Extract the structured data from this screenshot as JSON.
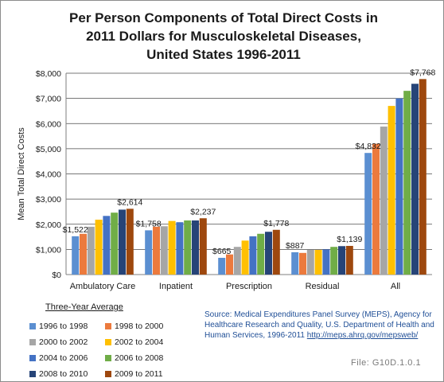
{
  "chart_data": {
    "type": "bar",
    "title_lines": [
      "Per Person Components of Total Direct Costs in",
      "2011 Dollars for Musculoskeletal Diseases,",
      "United States 1996-2011"
    ],
    "ylabel": "Mean Total Direct Costs",
    "ylim": [
      0,
      8000
    ],
    "yticks": [
      0,
      1000,
      2000,
      3000,
      4000,
      5000,
      6000,
      7000,
      8000
    ],
    "ytick_labels": [
      "$0",
      "$1,000",
      "$2,000",
      "$3,000",
      "$4,000",
      "$5,000",
      "$6,000",
      "$7,000",
      "$8,000"
    ],
    "grid": true,
    "categories": [
      "Ambulatory Care",
      "Inpatient",
      "Prescription",
      "Residual",
      "All"
    ],
    "series": [
      {
        "name": "1996 to 1998",
        "color": "#5b8fd1",
        "values": [
          1522,
          1758,
          665,
          887,
          4832
        ]
      },
      {
        "name": "1998 to 2000",
        "color": "#ec7a3d",
        "values": [
          1620,
          1900,
          800,
          860,
          5200
        ]
      },
      {
        "name": "2000 to 2002",
        "color": "#a6a6a6",
        "values": [
          1900,
          1920,
          1100,
          980,
          5880
        ]
      },
      {
        "name": "2002 to 2004",
        "color": "#ffc000",
        "values": [
          2180,
          2130,
          1350,
          980,
          6700
        ]
      },
      {
        "name": "2004 to 2006",
        "color": "#4472c4",
        "values": [
          2330,
          2080,
          1520,
          1000,
          7000
        ]
      },
      {
        "name": "2006 to 2008",
        "color": "#70ad47",
        "values": [
          2460,
          2150,
          1620,
          1100,
          7300
        ]
      },
      {
        "name": "2008 to 2010",
        "color": "#264478",
        "values": [
          2580,
          2150,
          1700,
          1130,
          7580
        ]
      },
      {
        "name": "2009 to 2011",
        "color": "#9e480e",
        "values": [
          2614,
          2237,
          1778,
          1139,
          7768
        ]
      }
    ],
    "data_labels": [
      {
        "category": 0,
        "series": 0,
        "text": "$1,522"
      },
      {
        "category": 0,
        "series": 7,
        "text": "$2,614"
      },
      {
        "category": 1,
        "series": 0,
        "text": "$1,758"
      },
      {
        "category": 1,
        "series": 7,
        "text": "$2,237"
      },
      {
        "category": 2,
        "series": 0,
        "text": "$665"
      },
      {
        "category": 2,
        "series": 7,
        "text": "$1,778"
      },
      {
        "category": 3,
        "series": 0,
        "text": "$887"
      },
      {
        "category": 3,
        "series": 7,
        "text": "$1,139"
      },
      {
        "category": 4,
        "series": 0,
        "text": "$4,832"
      },
      {
        "category": 4,
        "series": 7,
        "text": "$7,768"
      }
    ],
    "legend_title": "Three-Year  Average",
    "legend_placement": "bottom-left"
  },
  "source": {
    "text": "Source: Medical Expenditures Panel Survey (MEPS), Agency for Healthcare Research and Quality, U.S. Department of Health and Human Services, 1996-2011 ",
    "link": "http://meps.ahrq.gov/mepsweb/"
  },
  "file_label": "File: G10D.1.0.1"
}
